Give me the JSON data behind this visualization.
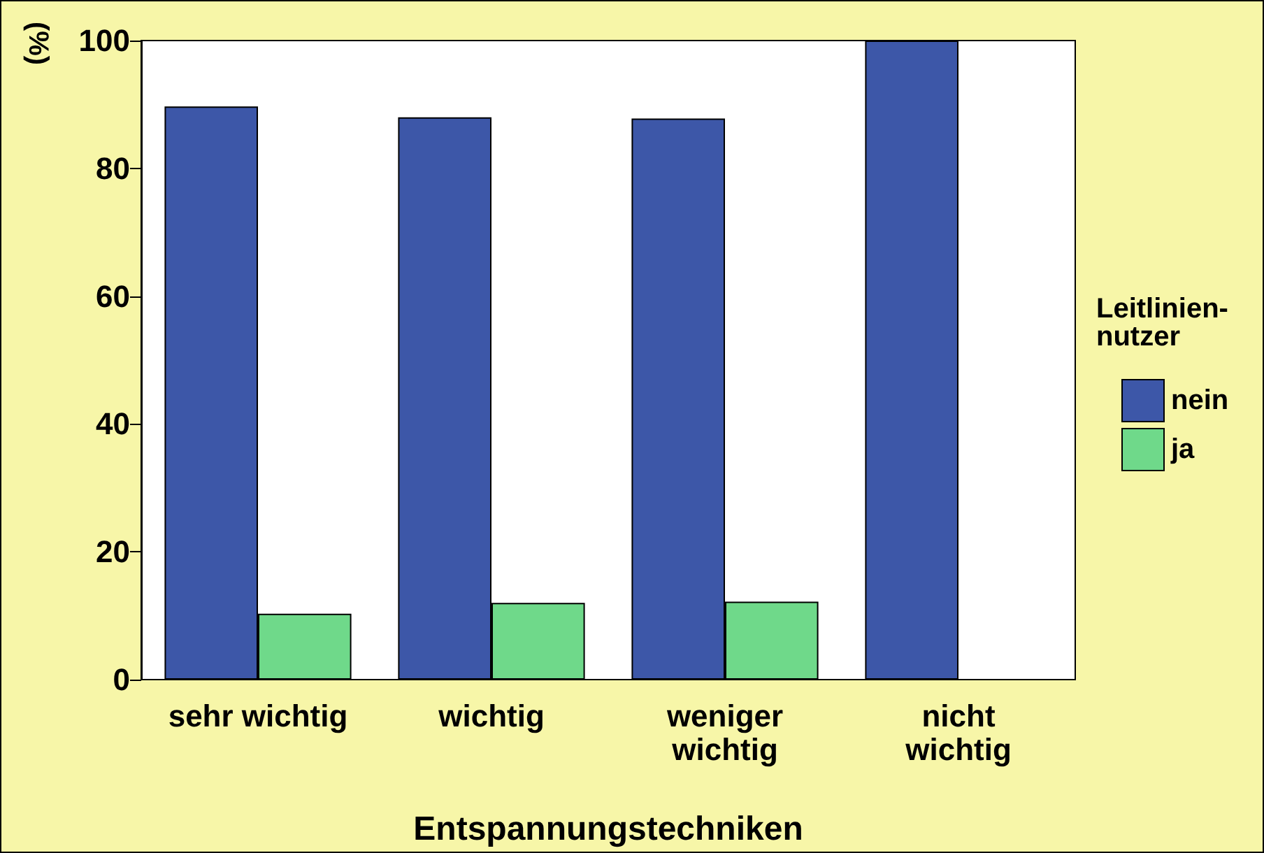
{
  "chart_data": {
    "type": "bar",
    "xlabel": "Entspannungstechniken",
    "ylabel": "(%)",
    "legend_title": "Leitlinien-\nnutzer",
    "categories": [
      "sehr wichtig",
      "wichtig",
      "weniger\nwichtig",
      "nicht\nwichtig"
    ],
    "series": [
      {
        "name": "nein",
        "color": "#3d57a8",
        "values": [
          89.7,
          88,
          87.8,
          100
        ]
      },
      {
        "name": "ja",
        "color": "#6fd98a",
        "values": [
          10.3,
          12,
          12.2,
          0
        ]
      }
    ],
    "ylim": [
      0,
      100
    ],
    "yticks": [
      0,
      20,
      40,
      60,
      80,
      100
    ],
    "grid": false,
    "legend": "right"
  }
}
